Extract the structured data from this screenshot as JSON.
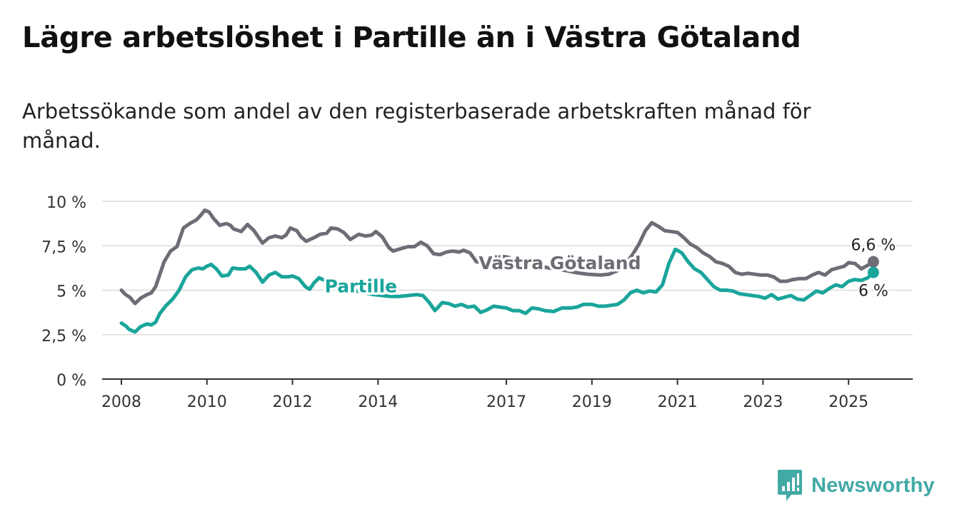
{
  "title": "Lägre arbetslöshet i Partille än i Västra Götaland",
  "subtitle": "Arbetssökande som andel av den registerbaserade arbetskraften månad för månad.",
  "brand": {
    "name": "Newsworthy",
    "color": "#42a9a5"
  },
  "chart_data": {
    "type": "line",
    "title": "Lägre arbetslöshet i Partille än i Västra Götaland",
    "subtitle": "Arbetssökande som andel av den registerbaserade arbetskraften månad för månad.",
    "xlabel": "",
    "ylabel": "",
    "x_unit": "year",
    "xlim": [
      2007.55,
      2026.5
    ],
    "ylim": [
      0,
      10
    ],
    "y_ticks": [
      {
        "value": 0,
        "label": "0 %"
      },
      {
        "value": 2.5,
        "label": "2,5 %"
      },
      {
        "value": 5,
        "label": "5 %"
      },
      {
        "value": 7.5,
        "label": "7,5 %"
      },
      {
        "value": 10,
        "label": "10 %"
      }
    ],
    "x_ticks": [
      {
        "value": 2008,
        "label": "2008"
      },
      {
        "value": 2010,
        "label": "2010"
      },
      {
        "value": 2012,
        "label": "2012"
      },
      {
        "value": 2014,
        "label": "2014"
      },
      {
        "value": 2017,
        "label": "2017"
      },
      {
        "value": 2019,
        "label": "2019"
      },
      {
        "value": 2021,
        "label": "2021"
      },
      {
        "value": 2023,
        "label": "2023"
      },
      {
        "value": 2025,
        "label": "2025"
      }
    ],
    "grid": true,
    "legend": "direct labels on lines",
    "series": [
      {
        "name": "Västra Götaland",
        "color": "#6e6c75",
        "end_label": "6,6 %",
        "points": [
          [
            2008.0,
            5.0
          ],
          [
            2008.1,
            4.75
          ],
          [
            2008.2,
            4.6
          ],
          [
            2008.32,
            4.25
          ],
          [
            2008.45,
            4.55
          ],
          [
            2008.6,
            4.75
          ],
          [
            2008.7,
            4.85
          ],
          [
            2008.8,
            5.2
          ],
          [
            2008.9,
            5.9
          ],
          [
            2009.0,
            6.6
          ],
          [
            2009.15,
            7.2
          ],
          [
            2009.3,
            7.45
          ],
          [
            2009.45,
            8.5
          ],
          [
            2009.6,
            8.75
          ],
          [
            2009.75,
            8.95
          ],
          [
            2009.85,
            9.2
          ],
          [
            2009.95,
            9.5
          ],
          [
            2010.05,
            9.4
          ],
          [
            2010.15,
            9.05
          ],
          [
            2010.3,
            8.65
          ],
          [
            2010.45,
            8.75
          ],
          [
            2010.55,
            8.65
          ],
          [
            2010.62,
            8.45
          ],
          [
            2010.8,
            8.3
          ],
          [
            2010.95,
            8.7
          ],
          [
            2011.1,
            8.35
          ],
          [
            2011.3,
            7.65
          ],
          [
            2011.45,
            7.95
          ],
          [
            2011.6,
            8.05
          ],
          [
            2011.75,
            7.95
          ],
          [
            2011.85,
            8.1
          ],
          [
            2011.95,
            8.5
          ],
          [
            2012.1,
            8.35
          ],
          [
            2012.2,
            8.0
          ],
          [
            2012.32,
            7.75
          ],
          [
            2012.5,
            7.95
          ],
          [
            2012.65,
            8.15
          ],
          [
            2012.8,
            8.2
          ],
          [
            2012.9,
            8.5
          ],
          [
            2013.05,
            8.45
          ],
          [
            2013.2,
            8.25
          ],
          [
            2013.35,
            7.85
          ],
          [
            2013.55,
            8.15
          ],
          [
            2013.7,
            8.05
          ],
          [
            2013.85,
            8.1
          ],
          [
            2013.95,
            8.3
          ],
          [
            2014.1,
            8.0
          ],
          [
            2014.25,
            7.4
          ],
          [
            2014.35,
            7.2
          ],
          [
            2014.55,
            7.35
          ],
          [
            2014.7,
            7.45
          ],
          [
            2014.85,
            7.45
          ],
          [
            2015.0,
            7.7
          ],
          [
            2015.15,
            7.5
          ],
          [
            2015.3,
            7.05
          ],
          [
            2015.45,
            7.0
          ],
          [
            2015.6,
            7.15
          ],
          [
            2015.75,
            7.2
          ],
          [
            2015.9,
            7.15
          ],
          [
            2016.0,
            7.25
          ],
          [
            2016.15,
            7.1
          ],
          [
            2016.3,
            6.6
          ],
          [
            2016.45,
            6.55
          ],
          [
            2016.6,
            6.7
          ],
          [
            2016.75,
            6.8
          ],
          [
            2016.9,
            6.9
          ],
          [
            2017.05,
            6.85
          ],
          [
            2017.2,
            6.6
          ],
          [
            2017.35,
            6.4
          ],
          [
            2017.5,
            6.55
          ],
          [
            2017.7,
            6.4
          ],
          [
            2018.0,
            6.25
          ],
          [
            2018.3,
            6.15
          ],
          [
            2018.6,
            6.0
          ],
          [
            2018.9,
            5.9
          ],
          [
            2019.2,
            5.85
          ],
          [
            2019.4,
            5.9
          ],
          [
            2019.6,
            6.1
          ],
          [
            2019.8,
            6.5
          ],
          [
            2019.95,
            7.0
          ],
          [
            2020.1,
            7.6
          ],
          [
            2020.25,
            8.35
          ],
          [
            2020.4,
            8.8
          ],
          [
            2020.55,
            8.6
          ],
          [
            2020.7,
            8.35
          ],
          [
            2020.85,
            8.3
          ],
          [
            2021.0,
            8.25
          ],
          [
            2021.15,
            7.95
          ],
          [
            2021.3,
            7.6
          ],
          [
            2021.45,
            7.4
          ],
          [
            2021.6,
            7.1
          ],
          [
            2021.75,
            6.9
          ],
          [
            2021.9,
            6.6
          ],
          [
            2022.05,
            6.5
          ],
          [
            2022.2,
            6.35
          ],
          [
            2022.35,
            6.0
          ],
          [
            2022.5,
            5.9
          ],
          [
            2022.65,
            5.95
          ],
          [
            2022.8,
            5.9
          ],
          [
            2022.95,
            5.85
          ],
          [
            2023.1,
            5.85
          ],
          [
            2023.25,
            5.75
          ],
          [
            2023.4,
            5.5
          ],
          [
            2023.55,
            5.5
          ],
          [
            2023.7,
            5.6
          ],
          [
            2023.85,
            5.65
          ],
          [
            2024.0,
            5.65
          ],
          [
            2024.15,
            5.85
          ],
          [
            2024.3,
            6.0
          ],
          [
            2024.45,
            5.85
          ],
          [
            2024.6,
            6.15
          ],
          [
            2024.75,
            6.25
          ],
          [
            2024.9,
            6.35
          ],
          [
            2025.0,
            6.55
          ],
          [
            2025.15,
            6.5
          ],
          [
            2025.3,
            6.2
          ],
          [
            2025.45,
            6.4
          ],
          [
            2025.58,
            6.6
          ]
        ]
      },
      {
        "name": "Partille",
        "color": "#1aa59b",
        "end_label": "6 %",
        "points": [
          [
            2008.0,
            3.15
          ],
          [
            2008.1,
            3.0
          ],
          [
            2008.18,
            2.8
          ],
          [
            2008.32,
            2.65
          ],
          [
            2008.45,
            2.95
          ],
          [
            2008.6,
            3.1
          ],
          [
            2008.7,
            3.05
          ],
          [
            2008.8,
            3.2
          ],
          [
            2008.9,
            3.7
          ],
          [
            2009.05,
            4.15
          ],
          [
            2009.2,
            4.5
          ],
          [
            2009.35,
            5.0
          ],
          [
            2009.5,
            5.75
          ],
          [
            2009.65,
            6.15
          ],
          [
            2009.8,
            6.25
          ],
          [
            2009.9,
            6.2
          ],
          [
            2010.0,
            6.35
          ],
          [
            2010.1,
            6.45
          ],
          [
            2010.22,
            6.2
          ],
          [
            2010.35,
            5.8
          ],
          [
            2010.5,
            5.85
          ],
          [
            2010.6,
            6.25
          ],
          [
            2010.75,
            6.2
          ],
          [
            2010.9,
            6.2
          ],
          [
            2011.0,
            6.35
          ],
          [
            2011.15,
            6.0
          ],
          [
            2011.3,
            5.45
          ],
          [
            2011.45,
            5.85
          ],
          [
            2011.6,
            6.0
          ],
          [
            2011.75,
            5.75
          ],
          [
            2011.9,
            5.75
          ],
          [
            2012.0,
            5.8
          ],
          [
            2012.15,
            5.65
          ],
          [
            2012.3,
            5.2
          ],
          [
            2012.4,
            5.05
          ],
          [
            2012.5,
            5.4
          ],
          [
            2012.62,
            5.7
          ],
          [
            2012.75,
            5.55
          ],
          [
            2012.9,
            5.45
          ],
          [
            2013.1,
            5.25
          ],
          [
            2013.3,
            5.0
          ],
          [
            2013.5,
            4.95
          ],
          [
            2013.7,
            4.85
          ],
          [
            2013.9,
            4.75
          ],
          [
            2014.1,
            4.7
          ],
          [
            2014.3,
            4.65
          ],
          [
            2014.5,
            4.65
          ],
          [
            2014.7,
            4.7
          ],
          [
            2014.9,
            4.75
          ],
          [
            2015.05,
            4.7
          ],
          [
            2015.2,
            4.3
          ],
          [
            2015.33,
            3.85
          ],
          [
            2015.5,
            4.3
          ],
          [
            2015.65,
            4.25
          ],
          [
            2015.8,
            4.1
          ],
          [
            2015.95,
            4.2
          ],
          [
            2016.1,
            4.05
          ],
          [
            2016.25,
            4.1
          ],
          [
            2016.4,
            3.75
          ],
          [
            2016.55,
            3.9
          ],
          [
            2016.7,
            4.1
          ],
          [
            2016.85,
            4.05
          ],
          [
            2017.0,
            4.0
          ],
          [
            2017.15,
            3.85
          ],
          [
            2017.3,
            3.85
          ],
          [
            2017.45,
            3.7
          ],
          [
            2017.6,
            4.0
          ],
          [
            2017.75,
            3.95
          ],
          [
            2017.9,
            3.85
          ],
          [
            2018.1,
            3.8
          ],
          [
            2018.3,
            4.0
          ],
          [
            2018.5,
            4.0
          ],
          [
            2018.65,
            4.05
          ],
          [
            2018.8,
            4.2
          ],
          [
            2019.0,
            4.2
          ],
          [
            2019.15,
            4.1
          ],
          [
            2019.3,
            4.1
          ],
          [
            2019.45,
            4.15
          ],
          [
            2019.6,
            4.2
          ],
          [
            2019.75,
            4.45
          ],
          [
            2019.9,
            4.85
          ],
          [
            2020.05,
            5.0
          ],
          [
            2020.2,
            4.85
          ],
          [
            2020.35,
            4.95
          ],
          [
            2020.5,
            4.9
          ],
          [
            2020.65,
            5.3
          ],
          [
            2020.8,
            6.5
          ],
          [
            2020.95,
            7.3
          ],
          [
            2021.1,
            7.1
          ],
          [
            2021.25,
            6.6
          ],
          [
            2021.4,
            6.2
          ],
          [
            2021.55,
            6.0
          ],
          [
            2021.7,
            5.6
          ],
          [
            2021.85,
            5.2
          ],
          [
            2022.0,
            5.0
          ],
          [
            2022.15,
            5.0
          ],
          [
            2022.3,
            4.95
          ],
          [
            2022.45,
            4.8
          ],
          [
            2022.6,
            4.75
          ],
          [
            2022.75,
            4.7
          ],
          [
            2022.9,
            4.65
          ],
          [
            2023.05,
            4.55
          ],
          [
            2023.2,
            4.75
          ],
          [
            2023.35,
            4.5
          ],
          [
            2023.5,
            4.6
          ],
          [
            2023.65,
            4.7
          ],
          [
            2023.8,
            4.5
          ],
          [
            2023.95,
            4.45
          ],
          [
            2024.1,
            4.7
          ],
          [
            2024.25,
            4.95
          ],
          [
            2024.4,
            4.85
          ],
          [
            2024.55,
            5.1
          ],
          [
            2024.7,
            5.3
          ],
          [
            2024.85,
            5.2
          ],
          [
            2025.0,
            5.5
          ],
          [
            2025.15,
            5.6
          ],
          [
            2025.3,
            5.55
          ],
          [
            2025.45,
            5.7
          ],
          [
            2025.58,
            6.0
          ]
        ]
      }
    ],
    "line_labels": [
      {
        "series": "Västra Götaland",
        "text": "Västra Götaland",
        "at_x": 2018.25,
        "at_y": 6.55
      },
      {
        "series": "Partille",
        "text": "Partille",
        "at_x": 2013.6,
        "at_y": 5.25
      }
    ]
  }
}
